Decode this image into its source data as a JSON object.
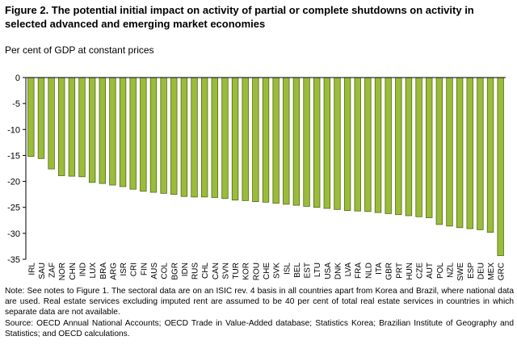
{
  "figure": {
    "title": "Figure 2. The potential initial impact on activity of partial or complete shutdowns on activity in selected advanced and emerging market economies",
    "subtitle": "Per cent of GDP at constant prices",
    "note": "Note: See notes to Figure 1. The sectoral data are on an ISIC rev. 4 basis in all countries apart from Korea and Brazil, where national data are used. Real estate services excluding imputed rent are assumed to be 40 per cent of total real estate services in countries in which separate data are not available.",
    "source": "Source: OECD Annual National Accounts; OECD Trade in Value-Added database; Statistics Korea; Brazilian Institute of Geography and Statistics; and OECD calculations."
  },
  "chart_data": {
    "type": "bar",
    "categories": [
      "IRL",
      "SAU",
      "ZAF",
      "NOR",
      "CHN",
      "IND",
      "LUX",
      "BRA",
      "ARG",
      "ISR",
      "CRI",
      "FIN",
      "AUS",
      "COL",
      "BGR",
      "IDN",
      "RUS",
      "CHL",
      "CAN",
      "SVN",
      "TUR",
      "KOR",
      "ROU",
      "CHE",
      "SVK",
      "ISL",
      "BEL",
      "EST",
      "LTU",
      "USA",
      "DNK",
      "LVA",
      "FRA",
      "NLD",
      "ITA",
      "GBR",
      "PRT",
      "HUN",
      "CZE",
      "AUT",
      "POL",
      "NZL",
      "SWE",
      "ESP",
      "DEU",
      "MEX",
      "GRC"
    ],
    "values": [
      -15.2,
      -15.6,
      -17.6,
      -18.9,
      -19.0,
      -19.1,
      -20.2,
      -20.4,
      -20.7,
      -21.0,
      -21.5,
      -21.9,
      -22.1,
      -22.3,
      -22.5,
      -22.9,
      -23.0,
      -23.0,
      -23.1,
      -23.3,
      -23.6,
      -23.7,
      -23.9,
      -24.0,
      -24.2,
      -24.4,
      -24.6,
      -24.8,
      -25.0,
      -25.2,
      -25.4,
      -25.6,
      -25.7,
      -25.8,
      -26.0,
      -26.2,
      -26.4,
      -26.6,
      -26.8,
      -27.0,
      -28.3,
      -28.6,
      -28.9,
      -29.1,
      -29.3,
      -29.8,
      -34.3
    ],
    "ylim": [
      -35,
      0
    ],
    "yticks": [
      0,
      -5,
      -10,
      -15,
      -20,
      -25,
      -30,
      -35
    ],
    "grid": false,
    "colors": {
      "bar_fill": "#9bbb3b",
      "bar_edge": "#4f6b12"
    }
  }
}
